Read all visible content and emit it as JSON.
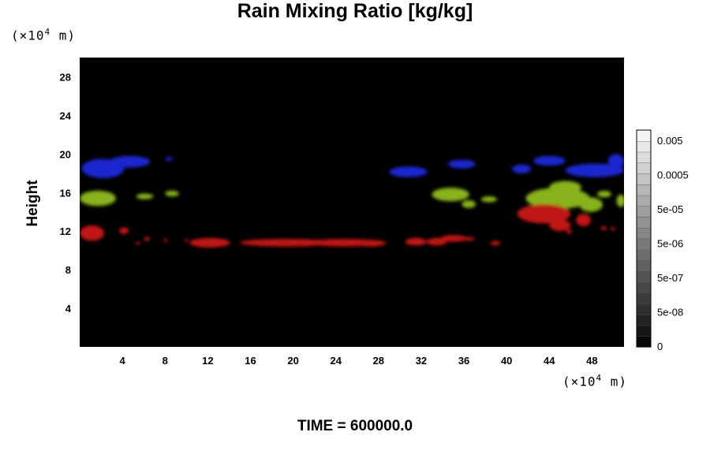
{
  "chart_data": {
    "type": "heatmap",
    "title": "Rain Mixing Ratio [kg/kg]",
    "ylabel": "Height",
    "xlabel": "",
    "y_unit": {
      "prefix": "(×10",
      "exp": "4",
      "suffix": " m)"
    },
    "x_unit": {
      "prefix": "(×10",
      "exp": "4",
      "suffix": " m)"
    },
    "xlim": [
      0,
      51
    ],
    "ylim": [
      0,
      30
    ],
    "x_ticks": [
      4,
      8,
      12,
      16,
      20,
      24,
      28,
      32,
      36,
      40,
      44,
      48
    ],
    "y_ticks": [
      4,
      8,
      12,
      16,
      20,
      24,
      28
    ],
    "background": "#000000",
    "colorbar": {
      "labels": [
        "0.005",
        "0.0005",
        "5e-05",
        "5e-06",
        "5e-07",
        "5e-08",
        "0"
      ],
      "levels": 20
    },
    "features": [
      {
        "color": "#1a28d0",
        "shapes": [
          [
            0.2,
            17.5,
            4,
            2.0
          ],
          [
            2.8,
            18.6,
            3.8,
            1.2
          ],
          [
            8,
            19.3,
            0.7,
            0.4
          ],
          [
            29,
            17.6,
            3.6,
            1.1
          ],
          [
            34.5,
            18.5,
            2.6,
            0.9
          ],
          [
            40.5,
            18.0,
            1.8,
            0.9
          ],
          [
            42.5,
            18.8,
            3,
            1.0
          ],
          [
            45.5,
            17.6,
            5.5,
            1.4
          ],
          [
            49.5,
            18.5,
            1.5,
            1.5
          ]
        ]
      },
      {
        "color": "#88b31a",
        "shapes": [
          [
            0,
            14.6,
            3.4,
            1.6
          ],
          [
            5.3,
            15.3,
            1.6,
            0.6
          ],
          [
            8,
            15.6,
            1.3,
            0.6
          ],
          [
            33,
            15.1,
            3.5,
            1.4
          ],
          [
            35.8,
            14.4,
            1.3,
            0.8
          ],
          [
            37.6,
            15.0,
            1.5,
            0.6
          ],
          [
            41.8,
            14.3,
            6,
            2.2
          ],
          [
            44,
            15.9,
            3,
            1.3
          ],
          [
            46.8,
            14.0,
            2.2,
            1.5
          ],
          [
            48.5,
            15.5,
            1.3,
            0.7
          ],
          [
            50.3,
            14.5,
            0.8,
            1.3
          ]
        ]
      },
      {
        "color": "#c01414",
        "shapes": [
          [
            0,
            11.0,
            2.3,
            1.6
          ],
          [
            3.7,
            11.7,
            0.9,
            0.7
          ],
          [
            5.2,
            10.6,
            0.5,
            0.3
          ],
          [
            6.0,
            11.0,
            0.6,
            0.4
          ],
          [
            7.8,
            10.9,
            0.5,
            0.3
          ],
          [
            9.8,
            10.9,
            0.4,
            0.3
          ],
          [
            10.3,
            10.3,
            3.8,
            1.0
          ],
          [
            15.0,
            10.4,
            8.5,
            0.8
          ],
          [
            21.5,
            10.4,
            6.5,
            0.8
          ],
          [
            25.8,
            10.4,
            2.9,
            0.7
          ],
          [
            30.5,
            10.5,
            2,
            0.8
          ],
          [
            32.5,
            10.5,
            1.9,
            0.8
          ],
          [
            33.8,
            10.9,
            2.5,
            0.7
          ],
          [
            36.0,
            11.0,
            1.0,
            0.4
          ],
          [
            38.5,
            10.5,
            0.9,
            0.5
          ],
          [
            41.0,
            12.8,
            5,
            2.0
          ],
          [
            44.0,
            12.0,
            2,
            1.2
          ],
          [
            45.6,
            11.7,
            0.5,
            0.5
          ],
          [
            46.5,
            12.5,
            1.4,
            1.3
          ],
          [
            48.8,
            12.1,
            0.6,
            0.4
          ],
          [
            49.7,
            12.1,
            0.5,
            0.3
          ]
        ]
      }
    ]
  },
  "footer": {
    "text": "TIME = 600000.0"
  }
}
